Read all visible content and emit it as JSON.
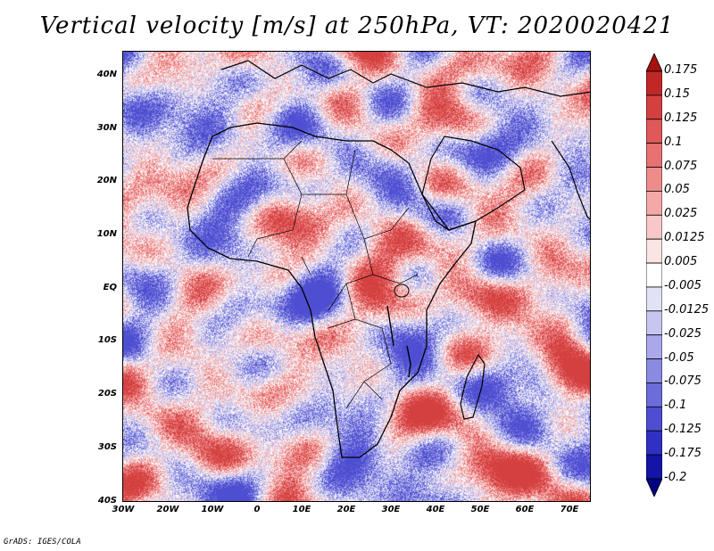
{
  "title": "Vertical velocity [m/s] at 250hPa, VT: 2020020421",
  "credit": "GrADS: IGES/COLA",
  "y_ticks": [
    "40N",
    "30N",
    "20N",
    "10N",
    "EQ",
    "10S",
    "20S",
    "30S",
    "40S"
  ],
  "x_ticks": [
    "30W",
    "20W",
    "10W",
    "0",
    "10E",
    "20E",
    "30E",
    "40E",
    "50E",
    "60E",
    "70E"
  ],
  "colorbar": {
    "labels": [
      "0.175",
      "0.15",
      "0.125",
      "0.1",
      "0.075",
      "0.05",
      "0.025",
      "0.0125",
      "0.005",
      "-0.005",
      "-0.0125",
      "-0.025",
      "-0.05",
      "-0.075",
      "-0.1",
      "-0.125",
      "-0.175",
      "-0.2"
    ],
    "colors": [
      "#a81010",
      "#c02828",
      "#d44040",
      "#e05858",
      "#e87272",
      "#ee8c8c",
      "#f4a8a8",
      "#f8c8c8",
      "#fbe4e4",
      "#ffffff",
      "#e2e2f6",
      "#c6c6f0",
      "#a8a8ea",
      "#8a8ae2",
      "#6c6cda",
      "#4e4ed2",
      "#3030c4",
      "#1414a8",
      "#000080"
    ]
  },
  "map": {
    "lon_range": [
      -30,
      75
    ],
    "lat_range": [
      -40,
      45
    ],
    "variable": "Vertical velocity",
    "units": "m/s",
    "level": "250hPa",
    "valid_time": "2020020421"
  }
}
